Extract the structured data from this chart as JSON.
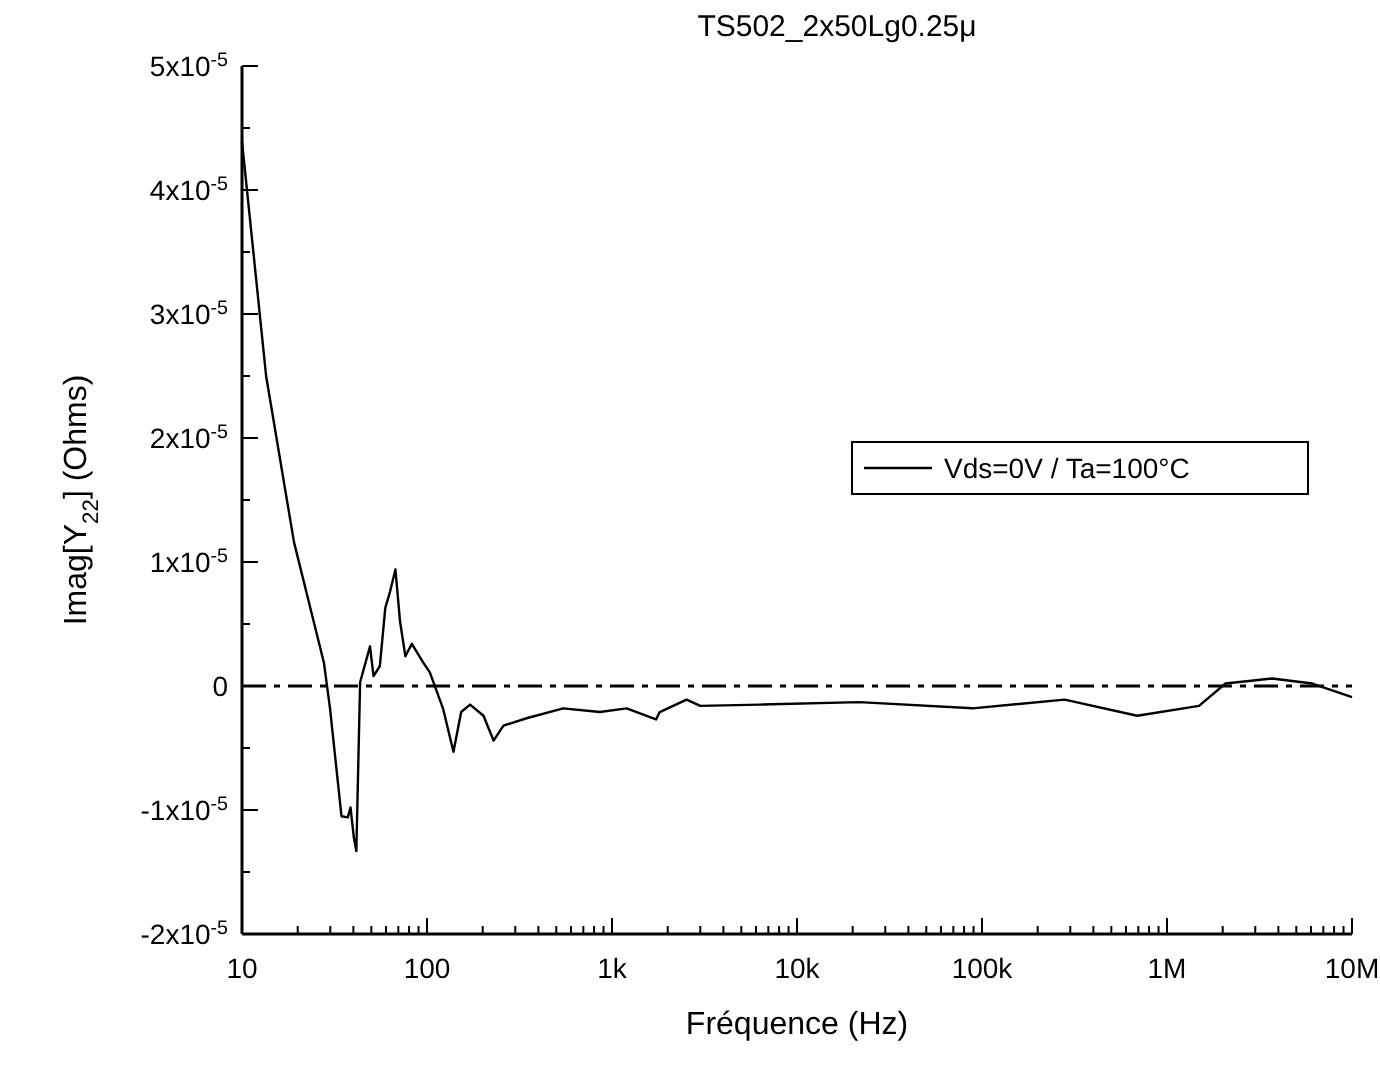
{
  "chart_data": {
    "type": "line",
    "title": "TS502_2x50Lg0.25μ",
    "xlabel": "Fréquence (Hz)",
    "ylabel": "Imag[Y$_{22}$] (Ohms)",
    "log": "x",
    "xlim": [
      10,
      10000000
    ],
    "xticks": [
      10,
      100,
      {
        "value": 1000,
        "label": "1k"
      },
      {
        "value": 10000,
        "label": "10k"
      },
      {
        "value": 100000,
        "label": "100k"
      },
      {
        "value": 1000000,
        "label": "1M"
      },
      {
        "value": 10000000,
        "label": "10M"
      }
    ],
    "ylim": [
      -2e-05,
      5e-05
    ],
    "yticks": [
      {
        "value": -2e-05,
        "label": "-2x10$^{-5}$"
      },
      {
        "value": -1e-05,
        "label": "-1x10$^{-5}$"
      },
      0,
      {
        "value": 1e-05,
        "label": "1x10$^{-5}$"
      },
      {
        "value": 2e-05,
        "label": "2x10$^{-5}$"
      },
      {
        "value": 3e-05,
        "label": "3x10$^{-5}$"
      },
      {
        "value": 4e-05,
        "label": "4x10$^{-5}$"
      },
      {
        "value": 5e-05,
        "label": "5x10$^{-5}$"
      }
    ],
    "grid": false,
    "legend": "center right",
    "line_style": "solid",
    "ref_lines": [
      {
        "axis": "y",
        "value": 0,
        "line_style": "dashed",
        "color": "#000000"
      }
    ],
    "series": [
      {
        "name": "Vds=0V / Ta=100°C",
        "color": "#000000",
        "x": [
          10,
          13.5,
          19.1,
          27.7,
          29.9,
          34.5,
          37.3,
          38.6,
          40.3,
          41.5,
          43.5,
          49.2,
          51.4,
          55.6,
          59.5,
          63.1,
          67.5,
          71.5,
          76.4,
          82.8,
          95.3,
          103.6,
          122,
          139,
          153,
          171,
          202,
          229,
          259,
          345,
          545,
          860,
          1200,
          1730,
          1810,
          2530,
          3000,
          6300,
          21700,
          89000,
          280000,
          690000,
          1490000,
          2070000,
          3700000,
          6100000,
          10000000
        ],
        "values": [
          4.39e-05,
          2.5e-05,
          1.16e-05,
          1.9e-06,
          -1.8e-06,
          -1.05e-05,
          -1.06e-05,
          -9.8e-06,
          -1.23e-05,
          -1.33e-05,
          3e-07,
          3.2e-06,
          8e-07,
          1.6e-06,
          6.3e-06,
          7.6e-06,
          9.4e-06,
          5.2e-06,
          2.4e-06,
          3.4e-06,
          1.9e-06,
          1.1e-06,
          -1.8e-06,
          -5.3e-06,
          -2.1e-06,
          -1.5e-06,
          -2.4e-06,
          -4.4e-06,
          -3.2e-06,
          -2.6e-06,
          -1.8e-06,
          -2.1e-06,
          -1.8e-06,
          -2.7e-06,
          -2.1e-06,
          -1.1e-06,
          -1.6e-06,
          -1.5e-06,
          -1.3e-06,
          -1.8e-06,
          -1.1e-06,
          -2.4e-06,
          -1.6e-06,
          2e-07,
          6e-07,
          2e-07,
          -9e-07
        ]
      }
    ]
  }
}
